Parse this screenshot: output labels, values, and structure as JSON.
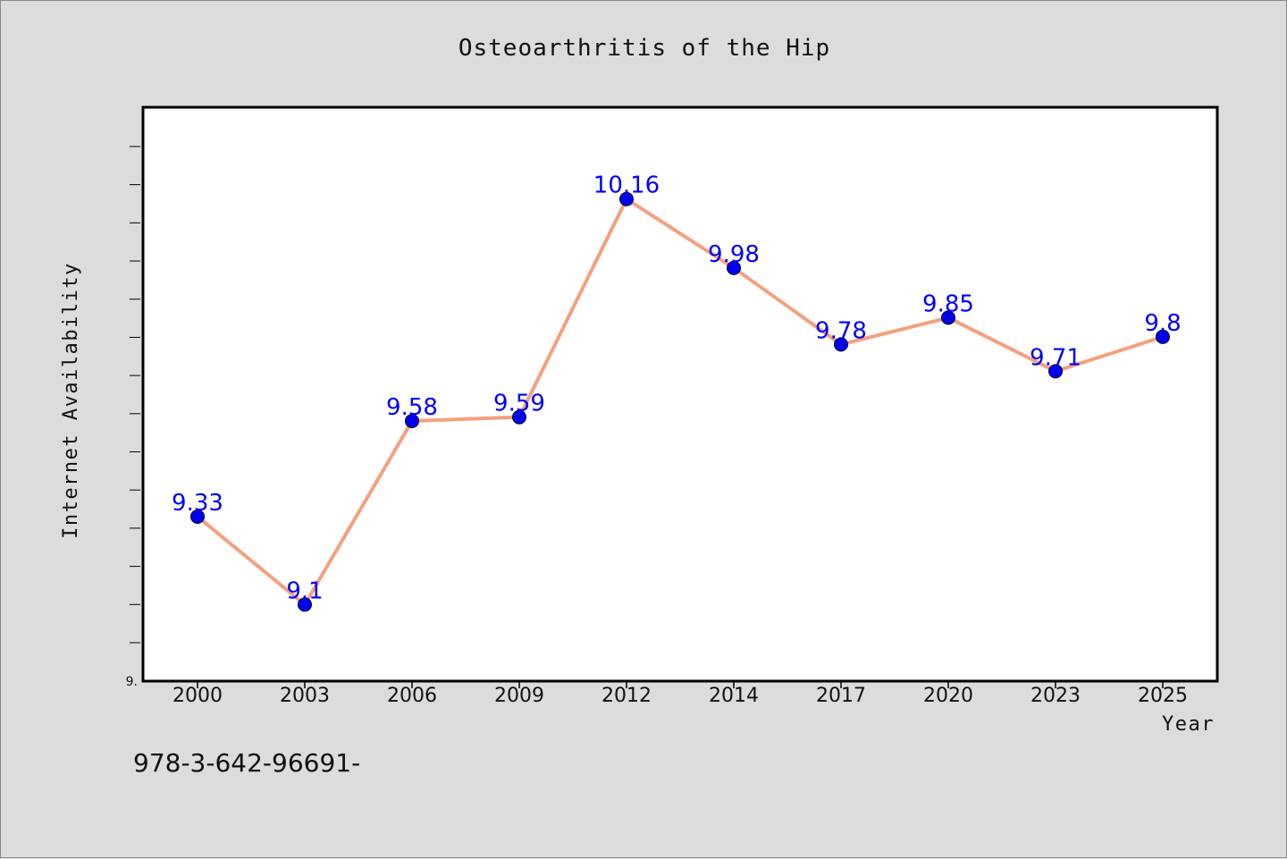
{
  "chart_data": {
    "type": "line",
    "title": "Osteoarthritis of the Hip",
    "xlabel": "Year",
    "ylabel": "Internet Availability",
    "categories": [
      "2000",
      "2003",
      "2006",
      "2009",
      "2012",
      "2014",
      "2017",
      "2020",
      "2023",
      "2025"
    ],
    "series": [
      {
        "values": [
          9.33,
          9.1,
          9.58,
          9.59,
          10.16,
          9.98,
          9.78,
          9.85,
          9.71,
          9.8
        ],
        "labels": [
          "9.33",
          "9.1",
          "9.58",
          "9.59",
          "10.16",
          "9.98",
          "9.78",
          "9.85",
          "9.71",
          "9.8"
        ],
        "line_color": "#f4a07e",
        "marker_color": "#0000ee",
        "label_color": "#0000ff"
      }
    ],
    "ylim": [
      8.9,
      10.4
    ],
    "y_tick_labels": [
      "9."
    ],
    "grid": false,
    "legend": "none"
  },
  "footer_text": "978-3-642-96691-"
}
